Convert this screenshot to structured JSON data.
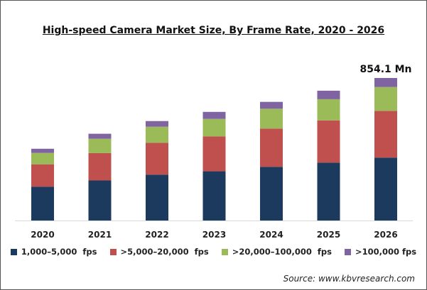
{
  "chart_data": {
    "type": "bar",
    "stacked": true,
    "title": "High-speed Camera Market Size, By Frame Rate, 2020 - 2026",
    "categories": [
      "2020",
      "2021",
      "2022",
      "2023",
      "2024",
      "2025",
      "2026"
    ],
    "series": [
      {
        "name": "1,000–5,000  fps",
        "color": "#1b3a5e",
        "values": [
          203,
          240,
          275,
          295,
          322,
          347,
          377
        ]
      },
      {
        "name": ">5,000–20,000  fps",
        "color": "#c0504d",
        "values": [
          134,
          164,
          191,
          209,
          229,
          253,
          280
        ]
      },
      {
        "name": ">20,000–100,000  fps",
        "color": "#9bbb59",
        "values": [
          68,
          86,
          96,
          105,
          119,
          127,
          143
        ]
      },
      {
        "name": ">100,000 fps",
        "color": "#8064a2",
        "values": [
          25,
          30,
          34,
          42,
          41,
          51,
          54.1
        ]
      }
    ],
    "annotations": [
      {
        "category": "2026",
        "text": "854.1 Mn"
      }
    ],
    "xlabel": "",
    "ylabel": "",
    "ylim": [
      0,
      854.1
    ],
    "grid": false,
    "legend": "bottom",
    "source": "Source: www.kbvresearch.com"
  }
}
